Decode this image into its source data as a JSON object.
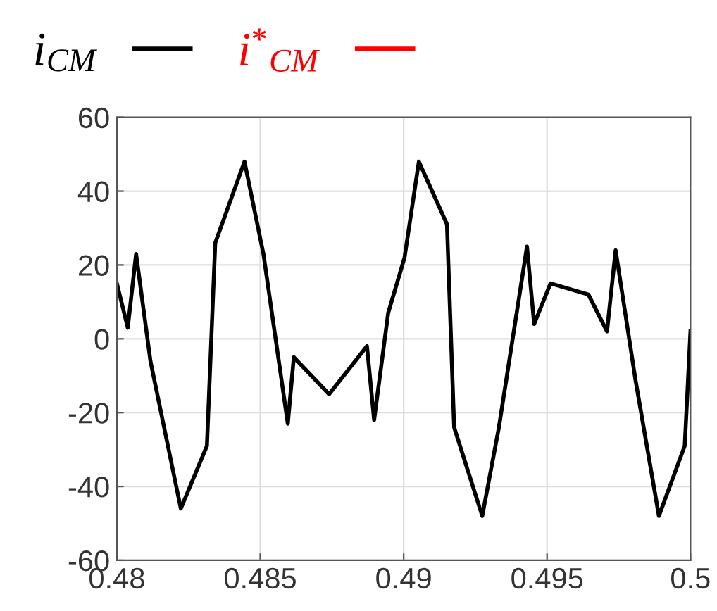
{
  "chart_data": {
    "type": "line",
    "x": [
      0.48,
      0.48038,
      0.48067,
      0.48117,
      0.48223,
      0.48314,
      0.48343,
      0.48445,
      0.48511,
      0.48596,
      0.48617,
      0.4874,
      0.48872,
      0.48897,
      0.48946,
      0.49003,
      0.49053,
      0.49151,
      0.49176,
      0.49274,
      0.49332,
      0.4943,
      0.49455,
      0.49512,
      0.49644,
      0.49709,
      0.49739,
      0.49808,
      0.4989,
      0.4998,
      0.5
    ],
    "series": [
      {
        "name": "i$_{CM}$",
        "color": "#000000",
        "values": [
          15,
          3,
          23,
          -6,
          -46,
          -29,
          26,
          48,
          23,
          -23,
          -5,
          -15,
          -2,
          -22,
          7,
          22,
          48,
          31,
          -24,
          -48,
          -24,
          25,
          4,
          15,
          12,
          2,
          24,
          -11,
          -48,
          -29,
          2
        ]
      },
      {
        "name": "i$^{*}$$_{CM}$",
        "color": "#ff0000",
        "values": [
          null,
          null,
          null,
          null,
          null,
          null,
          null,
          null,
          null,
          null,
          null,
          null,
          null,
          null,
          null,
          null,
          null,
          null,
          null,
          null,
          null,
          null,
          null,
          null,
          null,
          null,
          null,
          null,
          null,
          null,
          null
        ]
      }
    ],
    "xlim": [
      0.48,
      0.5
    ],
    "xticks": [
      0.48,
      0.485,
      0.49,
      0.495,
      0.5
    ],
    "ylim": [
      -60,
      60
    ],
    "yticks": [
      -60,
      -40,
      -20,
      0,
      20,
      40,
      60
    ],
    "grid": true,
    "legend": "top left",
    "line_style": "solid",
    "marker": "none"
  }
}
